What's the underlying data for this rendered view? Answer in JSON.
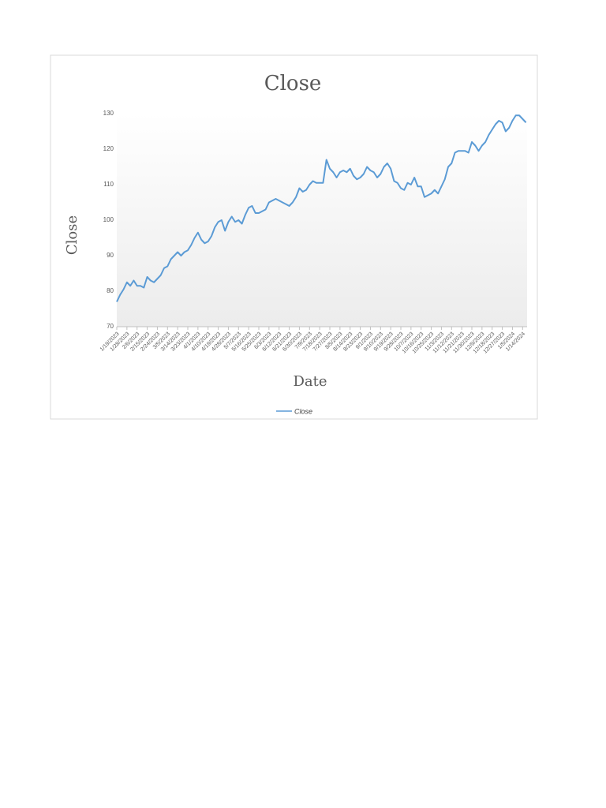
{
  "chart_data": {
    "type": "line",
    "title": "Close",
    "x_label": "Date",
    "y_label": "Close",
    "x": [
      "1/19/2023",
      "1/22/2023",
      "1/25/2023",
      "1/28/2023",
      "1/31/2023",
      "2/3/2023",
      "2/6/2023",
      "2/9/2023",
      "2/12/2023",
      "2/15/2023",
      "2/18/2023",
      "2/21/2023",
      "2/24/2023",
      "2/27/2023",
      "3/2/2023",
      "3/5/2023",
      "3/8/2023",
      "3/11/2023",
      "3/14/2023",
      "3/17/2023",
      "3/20/2023",
      "3/23/2023",
      "3/26/2023",
      "3/29/2023",
      "4/1/2023",
      "4/4/2023",
      "4/7/2023",
      "4/10/2023",
      "4/13/2023",
      "4/16/2023",
      "4/19/2023",
      "4/22/2023",
      "4/25/2023",
      "4/28/2023",
      "5/1/2023",
      "5/4/2023",
      "5/7/2023",
      "5/10/2023",
      "5/13/2023",
      "5/16/2023",
      "5/19/2023",
      "5/22/2023",
      "5/25/2023",
      "5/28/2023",
      "5/31/2023",
      "6/3/2023",
      "6/6/2023",
      "6/9/2023",
      "6/12/2023",
      "6/15/2023",
      "6/18/2023",
      "6/21/2023",
      "6/24/2023",
      "6/27/2023",
      "6/30/2023",
      "7/3/2023",
      "7/6/2023",
      "7/9/2023",
      "7/12/2023",
      "7/15/2023",
      "7/18/2023",
      "7/21/2023",
      "7/24/2023",
      "7/27/2023",
      "7/30/2023",
      "8/2/2023",
      "8/5/2023",
      "8/8/2023",
      "8/11/2023",
      "8/14/2023",
      "8/17/2023",
      "8/20/2023",
      "8/23/2023",
      "8/26/2023",
      "8/29/2023",
      "9/1/2023",
      "9/4/2023",
      "9/7/2023",
      "9/10/2023",
      "9/13/2023",
      "9/16/2023",
      "9/19/2023",
      "9/22/2023",
      "9/25/2023",
      "9/28/2023",
      "10/1/2023",
      "10/4/2023",
      "10/7/2023",
      "10/10/2023",
      "10/13/2023",
      "10/16/2023",
      "10/19/2023",
      "10/22/2023",
      "10/25/2023",
      "10/28/2023",
      "10/31/2023",
      "11/3/2023",
      "11/6/2023",
      "11/9/2023",
      "11/12/2023",
      "11/15/2023",
      "11/18/2023",
      "11/21/2023",
      "11/24/2023",
      "11/27/2023",
      "11/30/2023",
      "12/3/2023",
      "12/6/2023",
      "12/9/2023",
      "12/12/2023",
      "12/15/2023",
      "12/18/2023",
      "12/21/2023",
      "12/24/2023",
      "12/27/2023",
      "12/30/2023",
      "1/2/2024",
      "1/5/2024",
      "1/8/2024",
      "1/11/2024",
      "1/14/2024",
      "1/17/2024"
    ],
    "series": [
      {
        "name": "Close",
        "color": "#5b9bd5",
        "values": [
          77,
          79,
          80.5,
          82.5,
          81.5,
          83,
          81.5,
          81.5,
          81,
          84,
          83,
          82.5,
          83.5,
          84.5,
          86.5,
          87,
          89,
          90,
          91,
          90,
          91,
          91.5,
          93,
          95,
          96.5,
          94.5,
          93.5,
          94,
          95.5,
          98,
          99.5,
          100,
          97,
          99.5,
          101,
          99.5,
          100,
          99,
          101.5,
          103.5,
          104,
          102,
          102,
          102.5,
          103,
          105,
          105.5,
          106,
          105.5,
          105,
          104.5,
          104,
          105,
          106.5,
          109,
          108,
          108.5,
          110,
          111,
          110.5,
          110.5,
          110.5,
          117,
          114.5,
          113.5,
          112,
          113.5,
          114,
          113.5,
          114.5,
          112.5,
          111.5,
          112,
          113,
          115,
          114,
          113.5,
          112,
          113,
          115,
          116,
          114.5,
          111,
          110.5,
          109,
          108.5,
          110.5,
          110,
          112,
          109.5,
          109.5,
          106.5,
          107,
          107.5,
          108.5,
          107.5,
          109.5,
          111.5,
          115,
          116,
          119,
          119.5,
          119.5,
          119.5,
          119,
          122,
          121,
          119.5,
          121,
          122,
          124,
          125.5,
          127,
          128,
          127.5,
          125,
          126,
          128,
          129.5,
          129.5,
          128.5,
          127.5
        ]
      }
    ],
    "xlim": [
      "1/19/2023",
      "1/18/2024"
    ],
    "xticks": [
      "1/19/2023",
      "1/28/2023",
      "2/6/2023",
      "2/15/2023",
      "2/24/2023",
      "3/5/2023",
      "3/14/2023",
      "3/23/2023",
      "4/1/2023",
      "4/10/2023",
      "4/19/2023",
      "4/28/2023",
      "5/7/2023",
      "5/16/2023",
      "5/25/2023",
      "6/3/2023",
      "6/12/2023",
      "6/21/2023",
      "6/30/2023",
      "7/9/2023",
      "7/18/2023",
      "7/27/2023",
      "8/5/2023",
      "8/14/2023",
      "8/23/2023",
      "9/1/2023",
      "9/10/2023",
      "9/19/2023",
      "9/28/2023",
      "10/7/2023",
      "10/16/2023",
      "10/25/2023",
      "11/3/2023",
      "11/12/2023",
      "11/21/2023",
      "11/30/2023",
      "12/9/2023",
      "12/18/2023",
      "12/27/2023",
      "1/5/2024",
      "1/14/2024"
    ],
    "ylim": [
      70,
      130
    ],
    "yticks": [
      70,
      80,
      90,
      100,
      110,
      120,
      130
    ],
    "grid": false,
    "legend": "bottom"
  }
}
